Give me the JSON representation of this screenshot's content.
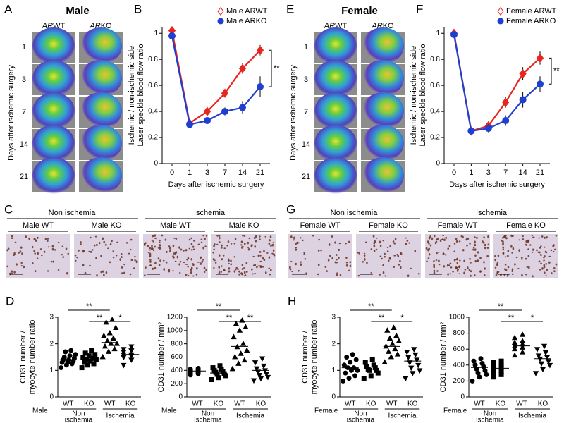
{
  "images": [
    {
      "panel": "A",
      "title": "Male",
      "columns": [
        {
          "gene": "AR",
          "genotype": "WT"
        },
        {
          "gene": "AR",
          "genotype": "KO"
        }
      ],
      "rows": [
        "1",
        "3",
        "7",
        "14",
        "21"
      ],
      "ylabel": "Days after ischemic surgery"
    },
    {
      "panel": "E",
      "title": "Female",
      "columns": [
        {
          "gene": "AR",
          "genotype": "WT"
        },
        {
          "gene": "AR",
          "genotype": "KO"
        }
      ],
      "rows": [
        "1",
        "3",
        "7",
        "14",
        "21"
      ],
      "ylabel": "Days after ischemic surgery"
    }
  ],
  "micrographs": [
    {
      "panel": "C",
      "groups": [
        {
          "label": "Non ischemia",
          "samples": [
            "Male WT",
            "Male KO"
          ]
        },
        {
          "label": "Ischemia",
          "samples": [
            "Male WT",
            "Male KO"
          ]
        }
      ]
    },
    {
      "panel": "G",
      "groups": [
        {
          "label": "Non ischemia",
          "samples": [
            "Female WT",
            "Female KO"
          ]
        },
        {
          "label": "Ischemia",
          "samples": [
            "Female WT",
            "Female KO"
          ]
        }
      ]
    }
  ],
  "chart_data": [
    {
      "type": "line",
      "panel": "B",
      "categories": [
        "0",
        "1",
        "3",
        "7",
        "14",
        "21"
      ],
      "xlabel": "Days after ischemic surgery",
      "ylabel": [
        "Ischemic / non-ischemic side",
        "Laser speckle blood flow ratio"
      ],
      "ylim": [
        0,
        1.05
      ],
      "yticks": [
        0,
        0.2,
        0.4,
        0.6,
        0.8,
        {
          "value": 1,
          "label": "1"
        }
      ],
      "series": [
        {
          "name": "Male ARWT",
          "color": "#e8251f",
          "marker": "diamond",
          "values": [
            1.02,
            0.31,
            0.4,
            0.54,
            0.73,
            0.87
          ],
          "errors": [
            0.02,
            0.02,
            0.02,
            0.03,
            0.04,
            0.04
          ]
        },
        {
          "name": "Male ARKO",
          "color": "#1f3fd1",
          "marker": "circle",
          "values": [
            0.98,
            0.3,
            0.33,
            0.4,
            0.43,
            0.59
          ],
          "errors": [
            0.02,
            0.02,
            0.02,
            0.03,
            0.05,
            0.08
          ]
        }
      ],
      "annotation": "**"
    },
    {
      "type": "line",
      "panel": "F",
      "categories": [
        "0",
        "1",
        "3",
        "7",
        "14",
        "21"
      ],
      "xlabel": "Days after ischemic surgery",
      "ylabel": [
        "Ischemic / non-ischemic side",
        "Laser speckle blood flow ratio"
      ],
      "ylim": [
        0,
        1.05
      ],
      "yticks": [
        0,
        0.2,
        0.4,
        0.6,
        0.8,
        {
          "value": 1,
          "label": "1"
        }
      ],
      "series": [
        {
          "name": "Female ARWT",
          "color": "#e8251f",
          "marker": "diamond",
          "values": [
            1.0,
            0.25,
            0.29,
            0.47,
            0.69,
            0.81
          ],
          "errors": [
            0.02,
            0.02,
            0.02,
            0.04,
            0.05,
            0.05
          ]
        },
        {
          "name": "Female ARKO",
          "color": "#1f3fd1",
          "marker": "circle",
          "values": [
            0.99,
            0.25,
            0.27,
            0.33,
            0.49,
            0.61
          ],
          "errors": [
            0.02,
            0.02,
            0.03,
            0.04,
            0.06,
            0.06
          ]
        }
      ],
      "annotation": "**"
    },
    {
      "type": "strip",
      "panel": "D",
      "sex": "Male",
      "categories": [
        "WT",
        "KO",
        "WT",
        "KO"
      ],
      "group_labels": [
        [
          "Non",
          "ischemia"
        ],
        [
          "Ischemia"
        ]
      ],
      "ylabel": [
        "CD31 number /",
        "myocyte number ratio"
      ],
      "ylim": [
        0,
        3
      ],
      "yticks": [
        0,
        1,
        2,
        3
      ],
      "markers": [
        "circle",
        "square",
        "triangle-up",
        "triangle-down"
      ],
      "values": [
        [
          1.1,
          1.2,
          1.25,
          1.3,
          1.3,
          1.35,
          1.4,
          1.4,
          1.45,
          1.5,
          1.55,
          1.6,
          1.7,
          1.75
        ],
        [
          1.1,
          1.2,
          1.25,
          1.3,
          1.35,
          1.4,
          1.4,
          1.45,
          1.5,
          1.55,
          1.6,
          1.65,
          1.75
        ],
        [
          1.5,
          1.7,
          1.8,
          1.9,
          2.0,
          2.0,
          2.1,
          2.2,
          2.3,
          2.4,
          2.6,
          2.8,
          2.9
        ],
        [
          1.2,
          1.4,
          1.5,
          1.55,
          1.6,
          1.6,
          1.7,
          1.75,
          1.8,
          1.9
        ]
      ],
      "means": [
        1.4,
        1.4,
        2.05,
        1.6
      ],
      "significance": [
        "**",
        "**",
        "*"
      ]
    },
    {
      "type": "strip",
      "sex": "Male",
      "categories": [
        "WT",
        "KO",
        "WT",
        "KO"
      ],
      "group_labels": [
        [
          "Non",
          "ischemia"
        ],
        [
          "Ischemia"
        ]
      ],
      "ylabel": [
        "CD31 number / mm²"
      ],
      "ylim": [
        0,
        1200
      ],
      "yticks": [
        0,
        200,
        400,
        600,
        800,
        1000,
        1200
      ],
      "markers": [
        "circle",
        "square",
        "triangle-up",
        "triangle-down"
      ],
      "values": [
        [
          330,
          350,
          360,
          370,
          380,
          390,
          400,
          410,
          420,
          430
        ],
        [
          260,
          290,
          320,
          340,
          350,
          370,
          380,
          400,
          420,
          440,
          470
        ],
        [
          420,
          500,
          550,
          600,
          650,
          700,
          750,
          800,
          900,
          1000,
          1050,
          1100,
          1150
        ],
        [
          250,
          280,
          300,
          330,
          350,
          380,
          400,
          430,
          470,
          520,
          580
        ]
      ],
      "means": [
        390,
        360,
        760,
        400
      ],
      "significance": [
        "**",
        "**",
        "**"
      ]
    },
    {
      "type": "strip",
      "panel": "H",
      "sex": "Female",
      "categories": [
        "WT",
        "KO",
        "WT",
        "KO"
      ],
      "group_labels": [
        [
          "Non",
          "ischemia"
        ],
        [
          "Ischemia"
        ]
      ],
      "ylabel": [
        "CD31 number /",
        "myocyte number ratio"
      ],
      "ylim": [
        0,
        3
      ],
      "yticks": [
        0,
        1,
        2,
        3
      ],
      "markers": [
        "circle",
        "square",
        "triangle-up",
        "triangle-down"
      ],
      "values": [
        [
          0.6,
          0.7,
          0.8,
          0.9,
          1.0,
          1.0,
          1.1,
          1.1,
          1.2,
          1.3,
          1.4,
          1.5,
          1.6
        ],
        [
          0.7,
          0.8,
          0.9,
          1.0,
          1.0,
          1.05,
          1.1,
          1.15,
          1.2,
          1.3,
          1.4
        ],
        [
          1.3,
          1.5,
          1.6,
          1.7,
          1.8,
          1.9,
          2.0,
          2.1,
          2.2,
          2.3,
          2.5,
          2.6
        ],
        [
          0.7,
          0.9,
          1.0,
          1.1,
          1.2,
          1.3,
          1.4,
          1.5,
          1.6,
          1.7,
          1.8
        ]
      ],
      "means": [
        1.1,
        1.05,
        1.9,
        1.35
      ],
      "significance": [
        "**",
        "**",
        "*"
      ]
    },
    {
      "type": "strip",
      "sex": "Female",
      "categories": [
        "WT",
        "KO",
        "WT",
        "KO"
      ],
      "group_labels": [
        [
          "Non",
          "ischemia"
        ],
        [
          "Ischemia"
        ]
      ],
      "ylabel": [
        "CD31 number / mm²"
      ],
      "ylim": [
        0,
        1000
      ],
      "yticks": [
        0,
        200,
        400,
        600,
        800,
        1000
      ],
      "markers": [
        "circle",
        "square",
        "triangle-up",
        "triangle-down"
      ],
      "values": [
        [
          200,
          250,
          280,
          300,
          330,
          350,
          380,
          400,
          420,
          450,
          480
        ],
        [
          250,
          280,
          300,
          320,
          350,
          370,
          380,
          400,
          430,
          450
        ],
        [
          520,
          560,
          600,
          620,
          640,
          660,
          680,
          700,
          740,
          780
        ],
        [
          300,
          350,
          400,
          420,
          450,
          480,
          500,
          520,
          560,
          600,
          640
        ]
      ],
      "means": [
        370,
        360,
        640,
        480
      ],
      "significance": [
        "**",
        "**",
        "*"
      ]
    }
  ]
}
